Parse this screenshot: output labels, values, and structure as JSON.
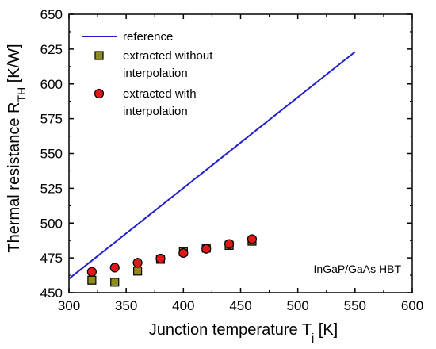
{
  "chart_data": {
    "type": "line",
    "xlabel": "Junction temperature T",
    "xlabel_sub": "j",
    "xlabel_unit": " [K]",
    "ylabel": "Thermal resistance R",
    "ylabel_sub": "TH",
    "ylabel_unit": " [K/W]",
    "xlim": [
      300,
      600
    ],
    "ylim": [
      450,
      650
    ],
    "x_ticks": [
      "300",
      "350",
      "400",
      "450",
      "500",
      "550",
      "600"
    ],
    "y_ticks": [
      "450",
      "475",
      "500",
      "525",
      "550",
      "575",
      "600",
      "625",
      "650"
    ],
    "grid": false,
    "legend_position": "top-left",
    "annotation": "InGaP/GaAs HBT",
    "series": [
      {
        "name": "reference",
        "kind": "line",
        "color": "#1f1fcf",
        "x": [
          300,
          550
        ],
        "y": [
          460,
          623
        ]
      },
      {
        "name": "extracted without interpolation",
        "legend_lines": [
          "extracted without",
          "interpolation"
        ],
        "kind": "square",
        "color": "#8c8c22",
        "x": [
          320,
          340,
          360,
          380,
          400,
          420,
          440,
          460
        ],
        "y": [
          459,
          457.5,
          465.5,
          474,
          479.5,
          482,
          484,
          487
        ]
      },
      {
        "name": "extracted with interpolation",
        "legend_lines": [
          "extracted with",
          "interpolation"
        ],
        "kind": "circle",
        "color": "#e01818",
        "x": [
          320,
          340,
          360,
          380,
          400,
          420,
          440,
          460
        ],
        "y": [
          465,
          468,
          471.5,
          474.5,
          478.5,
          481.5,
          485,
          488.5
        ]
      }
    ]
  }
}
